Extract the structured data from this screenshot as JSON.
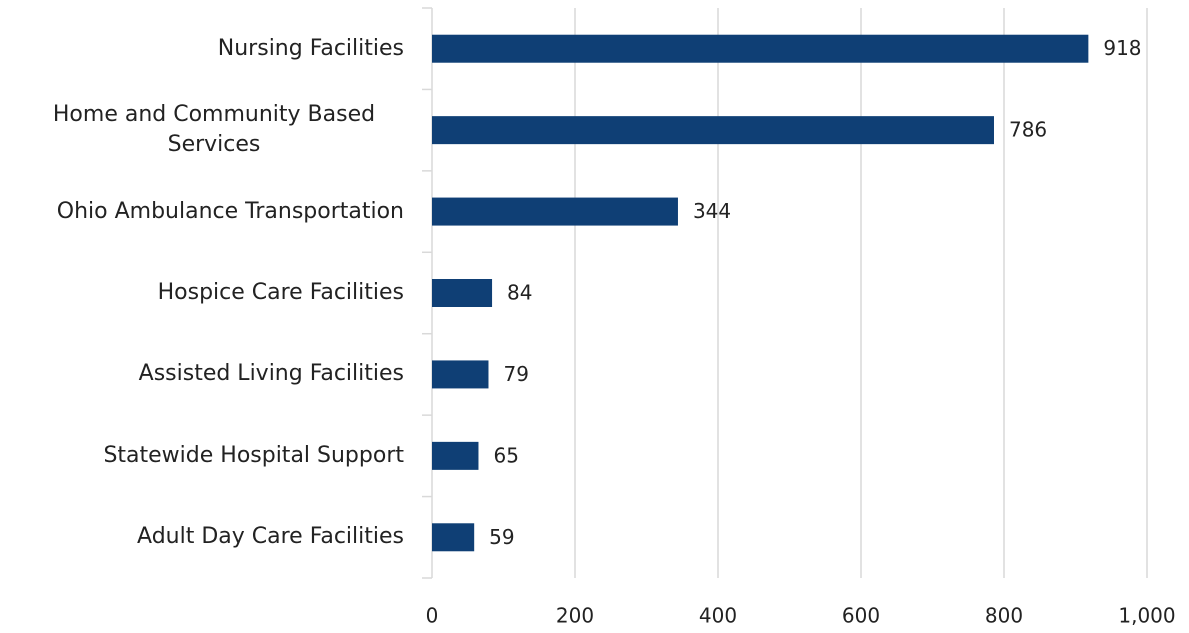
{
  "chart_data": {
    "type": "bar",
    "orientation": "horizontal",
    "categories": [
      "Nursing Facilities",
      "Home and Community Based Services",
      "Ohio Ambulance Transportation",
      "Hospice Care Facilities",
      "Assisted Living Facilities",
      "Statewide Hospital Support",
      "Adult Day Care Facilities"
    ],
    "values": [
      918,
      786,
      344,
      84,
      79,
      65,
      59
    ],
    "color": "#0f3f75",
    "xlim": [
      0,
      1000
    ],
    "xticks": [
      0,
      200,
      400,
      600,
      800,
      {
        "value": 1000,
        "label": "1,000"
      }
    ],
    "grid": true
  }
}
